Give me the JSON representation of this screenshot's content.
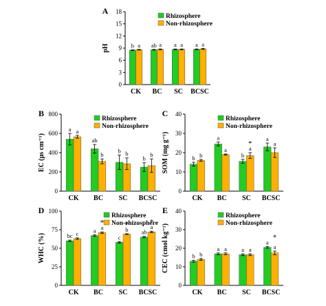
{
  "colors": {
    "rhizosphere": "#22cc22",
    "non_rhizosphere": "#ffb000",
    "bar_stroke": "#555555",
    "axis": "#000000"
  },
  "chart_data": [
    {
      "panel": "A",
      "type": "bar",
      "categories": [
        "CK",
        "BC",
        "SC",
        "BCSC"
      ],
      "ylabel": "pH",
      "ylim": [
        0,
        18
      ],
      "yticks": [
        0,
        3,
        6,
        9,
        12,
        15,
        18
      ],
      "legend": "top-left",
      "series": [
        {
          "name": "Rhizosphere",
          "values": [
            8.5,
            8.6,
            8.7,
            8.7
          ],
          "errors": [
            0.1,
            0.1,
            0.1,
            0.1
          ],
          "labels": [
            "b",
            "ab",
            "a",
            "a"
          ]
        },
        {
          "name": "Non-rhizosphere",
          "values": [
            8.6,
            8.7,
            8.7,
            8.8
          ],
          "errors": [
            0.1,
            0.1,
            0.1,
            0.1
          ],
          "labels": [
            "a",
            "a",
            "a",
            "a"
          ]
        }
      ],
      "stars": []
    },
    {
      "panel": "B",
      "type": "bar",
      "categories": [
        "CK",
        "BC",
        "SC",
        "BCSC"
      ],
      "ylabel": "EC (μs cm⁻¹)",
      "ylim": [
        0,
        800
      ],
      "yticks": [
        0,
        200,
        400,
        600,
        800
      ],
      "legend": "top-left",
      "series": [
        {
          "name": "Rhizosphere",
          "values": [
            540,
            440,
            300,
            250
          ],
          "errors": [
            60,
            45,
            75,
            45
          ],
          "labels": [
            "a",
            "ab",
            "b",
            "b"
          ]
        },
        {
          "name": "Non-rhizosphere",
          "values": [
            565,
            310,
            285,
            265
          ],
          "errors": [
            15,
            25,
            60,
            70
          ],
          "labels": [
            "a",
            "b",
            "b",
            "b"
          ]
        }
      ],
      "stars": []
    },
    {
      "panel": "C",
      "type": "bar",
      "categories": [
        "CK",
        "BC",
        "SC",
        "BCSC"
      ],
      "ylabel": "SOM (mg g⁻¹)",
      "ylim": [
        0,
        40
      ],
      "yticks": [
        0,
        10,
        20,
        30,
        40
      ],
      "legend": "top-left",
      "series": [
        {
          "name": "Rhizosphere",
          "values": [
            14,
            24.5,
            15.5,
            23
          ],
          "errors": [
            1,
            1,
            1,
            2
          ],
          "labels": [
            "b",
            "a",
            "b",
            "a"
          ]
        },
        {
          "name": "Non-rhizosphere",
          "values": [
            16,
            19,
            18.5,
            20
          ],
          "errors": [
            0.5,
            0.3,
            1.5,
            2.5
          ],
          "labels": [
            "b",
            "a",
            "a",
            "a"
          ]
        }
      ],
      "stars": [
        {
          "category": "SC",
          "symbol": "*"
        }
      ]
    },
    {
      "panel": "D",
      "type": "bar",
      "categories": [
        "CK",
        "BC",
        "SC",
        "BCSC"
      ],
      "ylabel": "WHC (%)",
      "ylim": [
        0,
        100
      ],
      "yticks": [
        0,
        25,
        50,
        75,
        100
      ],
      "legend": "top-right",
      "series": [
        {
          "name": "Rhizosphere",
          "values": [
            60,
            67,
            58,
            65
          ],
          "errors": [
            1,
            1,
            1,
            1
          ],
          "labels": [
            "bc",
            "a",
            "c",
            "ab"
          ]
        },
        {
          "name": "Non-rhizosphere",
          "values": [
            63,
            71,
            69,
            72
          ],
          "errors": [
            1,
            1,
            0.5,
            1
          ],
          "labels": [
            "c",
            "a",
            "b",
            "a"
          ]
        }
      ],
      "stars": [
        {
          "category": "BC",
          "symbol": "*"
        },
        {
          "category": "SC",
          "symbol": "*"
        },
        {
          "category": "BCSC",
          "symbol": "*"
        }
      ]
    },
    {
      "panel": "E",
      "type": "bar",
      "categories": [
        "CK",
        "BC",
        "SC",
        "BCSC"
      ],
      "ylabel": "CEC (cmol kg⁻¹)",
      "ylim": [
        0,
        40
      ],
      "yticks": [
        0,
        10,
        20,
        30,
        40
      ],
      "legend": "top-left",
      "series": [
        {
          "name": "Rhizosphere",
          "values": [
            13,
            17,
            16.5,
            20.5
          ],
          "errors": [
            0.5,
            0.5,
            0.5,
            0.5
          ],
          "labels": [
            "b",
            "a",
            "a",
            "a"
          ]
        },
        {
          "name": "Non-rhizosphere",
          "values": [
            14,
            17,
            16.5,
            17.5
          ],
          "errors": [
            0.5,
            0.5,
            0.5,
            1
          ],
          "labels": [
            "b",
            "a",
            "a",
            "a"
          ]
        }
      ],
      "stars": [
        {
          "category": "BCSC",
          "symbol": "*"
        }
      ]
    }
  ]
}
